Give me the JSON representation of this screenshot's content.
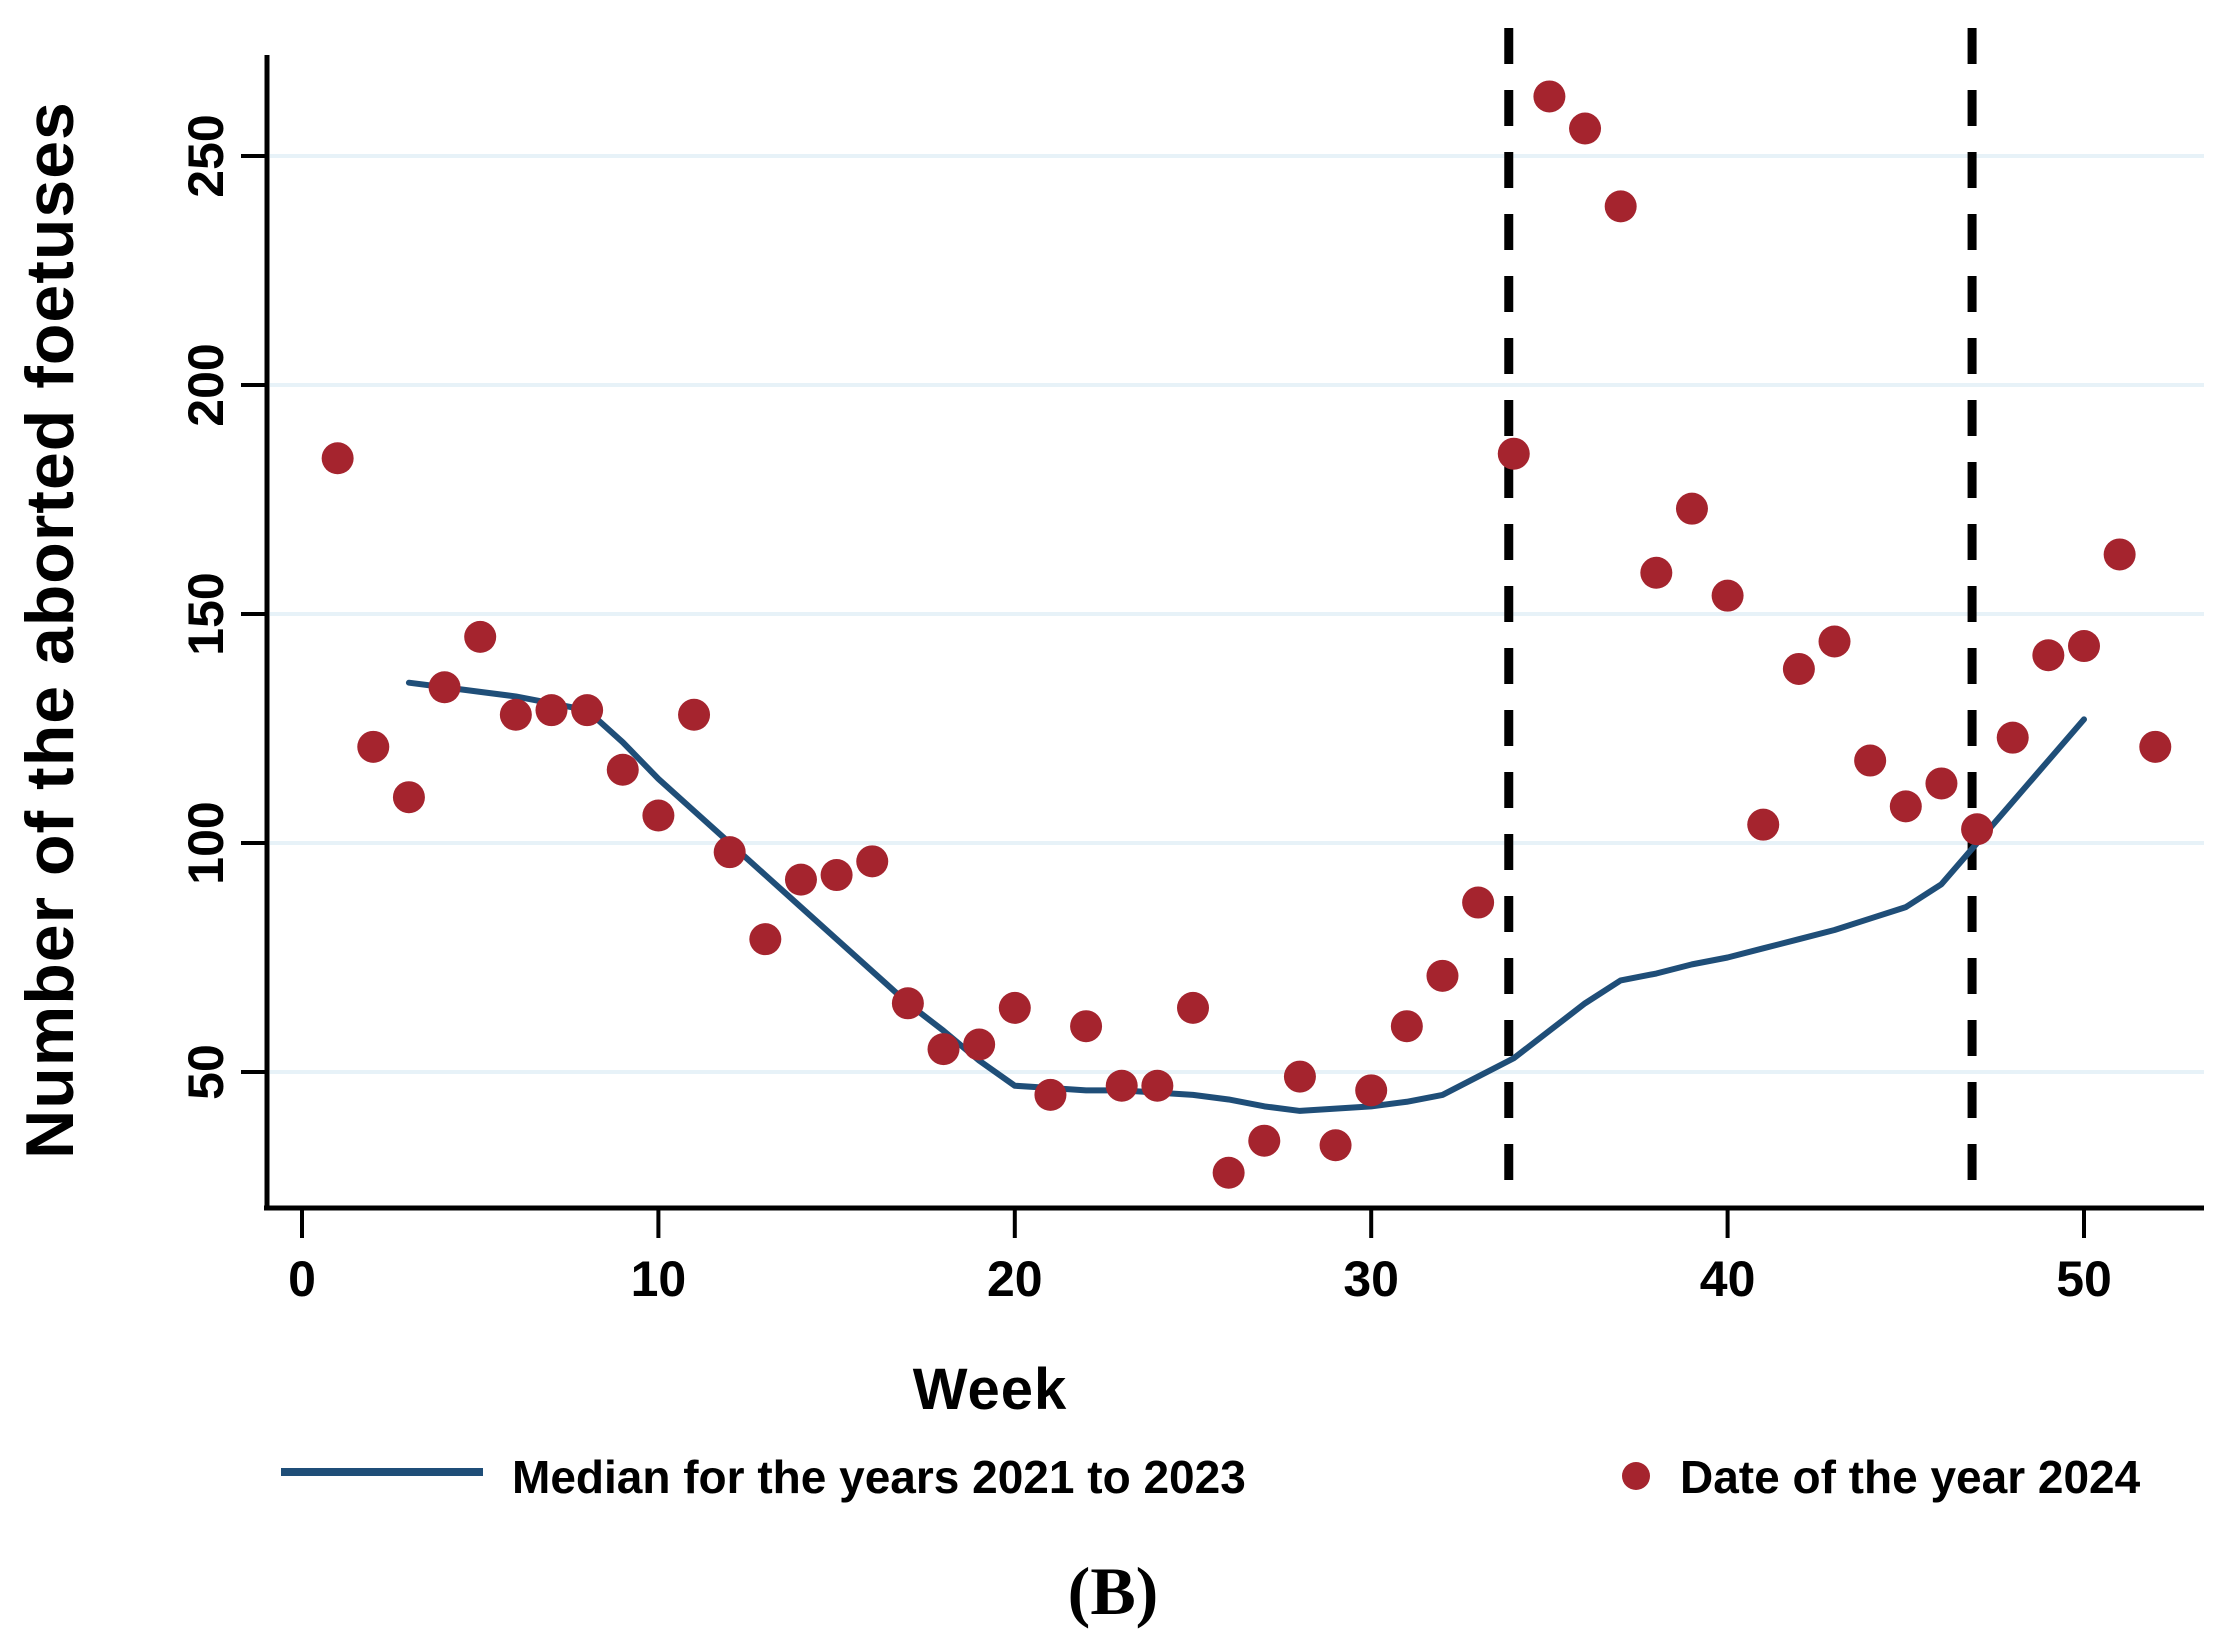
{
  "chart_data": {
    "type": "scatter",
    "title": "",
    "xlabel": "Week",
    "ylabel": "Number of the aborted foetuses",
    "caption": "(B)",
    "x_ticks": [
      0,
      10,
      20,
      30,
      40,
      50
    ],
    "y_ticks": [
      50,
      100,
      150,
      200,
      250
    ],
    "xlim": [
      -1,
      53.2
    ],
    "ylim": [
      20,
      275
    ],
    "grid": "horizontal-only",
    "legend_position": "bottom",
    "colors": {
      "scatter": "#A5242E",
      "line": "#1F4E78",
      "gridline": "#E7F2F8",
      "axis": "#000000",
      "reference_line": "#000000",
      "background": "#FFFFFF"
    },
    "reference_lines": {
      "style": "dashed-vertical",
      "weeks": [
        34,
        47
      ]
    },
    "series": [
      {
        "name": "Median for the years 2021 to 2023",
        "type": "line",
        "color": "#1F4E78",
        "weeks": [
          3,
          4,
          5,
          6,
          7,
          8,
          9,
          10,
          11,
          12,
          13,
          14,
          15,
          16,
          17,
          18,
          19,
          20,
          21,
          22,
          23,
          24,
          25,
          26,
          27,
          28,
          29,
          30,
          31,
          32,
          33,
          34,
          35,
          36,
          37,
          38,
          39,
          40,
          41,
          42,
          43,
          44,
          45,
          46,
          47,
          48,
          49,
          50
        ],
        "values": [
          135,
          134,
          133,
          132,
          130.5,
          129,
          122,
          114,
          107,
          100,
          93,
          86,
          79,
          72,
          65,
          59,
          52.5,
          47,
          46.5,
          46,
          46,
          45.5,
          45,
          44,
          42.5,
          41.5,
          42,
          42.5,
          43.5,
          45,
          49,
          53,
          59,
          65,
          70,
          71.5,
          73.5,
          75,
          77,
          79,
          81,
          83.5,
          86,
          91,
          100,
          109,
          118,
          127
        ]
      },
      {
        "name": "Date of the year 2024",
        "type": "scatter",
        "color": "#A5242E",
        "weeks": [
          1,
          2,
          3,
          4,
          5,
          6,
          7,
          8,
          9,
          10,
          11,
          12,
          13,
          14,
          15,
          16,
          17,
          18,
          19,
          20,
          21,
          22,
          23,
          24,
          25,
          26,
          27,
          28,
          29,
          30,
          31,
          32,
          33,
          34,
          35,
          36,
          37,
          38,
          39,
          40,
          41,
          42,
          43,
          44,
          45,
          46,
          47,
          48,
          49,
          50,
          51,
          52
        ],
        "values": [
          184,
          121,
          110,
          134,
          145,
          128,
          129,
          129,
          116,
          106,
          128,
          98,
          79,
          92,
          93,
          96,
          65,
          55,
          56,
          64,
          45,
          60,
          47,
          47,
          64,
          28,
          35,
          49,
          34,
          46,
          60,
          71,
          87,
          185,
          263,
          256,
          239,
          159,
          173,
          154,
          104,
          138,
          144,
          118,
          108,
          113,
          103,
          123,
          141,
          143,
          163,
          121
        ]
      }
    ]
  }
}
